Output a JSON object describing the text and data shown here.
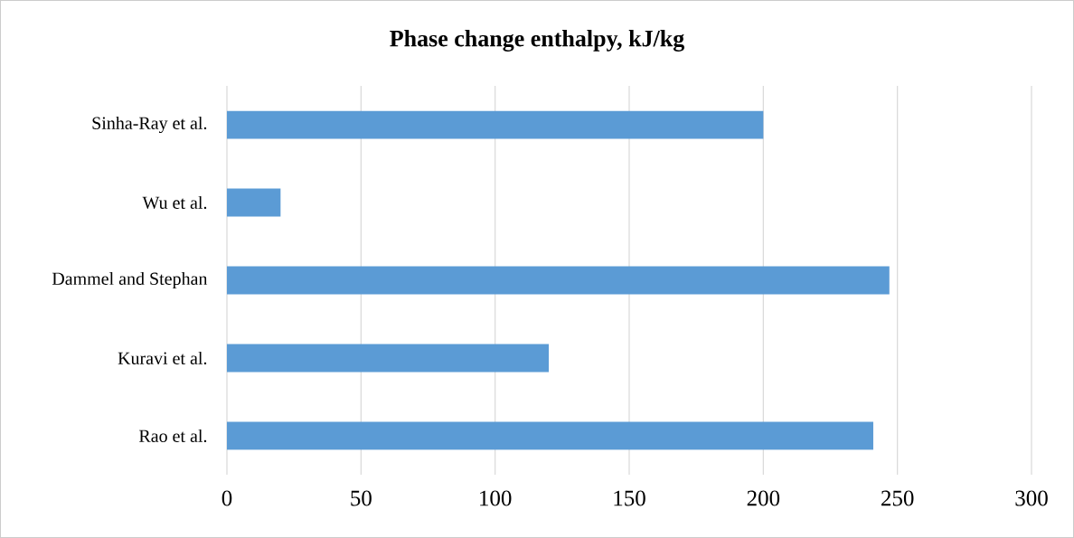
{
  "chart_data": {
    "type": "bar",
    "orientation": "horizontal",
    "title": "Phase change enthalpy, kJ/kg",
    "categories": [
      "Sinha-Ray et al.",
      "Wu et al.",
      "Dammel and Stephan",
      "Kuravi et al.",
      "Rao et al."
    ],
    "values": [
      200,
      20,
      247,
      120,
      241
    ],
    "color": "#5b9bd5",
    "xlim": [
      0,
      300
    ],
    "xticks": [
      0,
      50,
      100,
      150,
      200,
      250,
      300
    ],
    "grid": "x"
  }
}
